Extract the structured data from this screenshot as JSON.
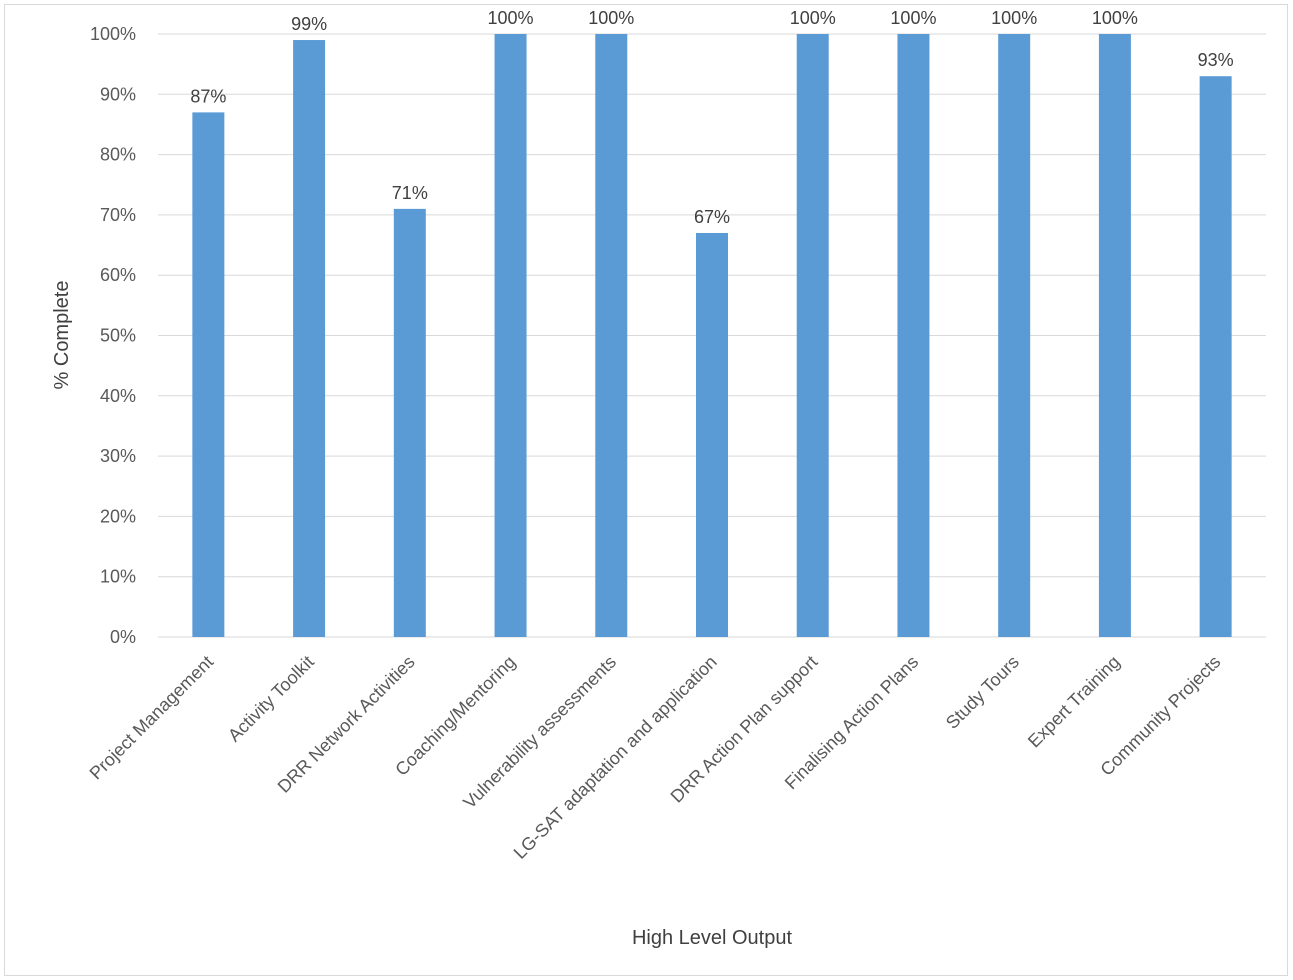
{
  "chart_data": {
    "type": "bar",
    "title": "",
    "xlabel": "High Level Output",
    "ylabel": "% Complete",
    "ylim": [
      0,
      100
    ],
    "yticks": [
      "0%",
      "10%",
      "20%",
      "30%",
      "40%",
      "50%",
      "60%",
      "70%",
      "80%",
      "90%",
      "100%"
    ],
    "grid": true,
    "legend": "none",
    "categories": [
      "Project Management",
      "Activity Toolkit",
      "DRR Network Activities",
      "Coaching/Mentoring",
      "Vulnerability assessments",
      "LG-SAT adaptation and application",
      "DRR Action Plan support",
      "Finalising Action Plans",
      "Study Tours",
      "Expert Training",
      "Community Projects"
    ],
    "values": [
      87,
      99,
      71,
      100,
      100,
      67,
      100,
      100,
      100,
      100,
      93
    ],
    "data_labels": [
      "87%",
      "99%",
      "71%",
      "100%",
      "100%",
      "67%",
      "100%",
      "100%",
      "100%",
      "100%",
      "93%"
    ],
    "bar_color": "#5b9bd5",
    "gridline_color": "#d9d9d9"
  }
}
